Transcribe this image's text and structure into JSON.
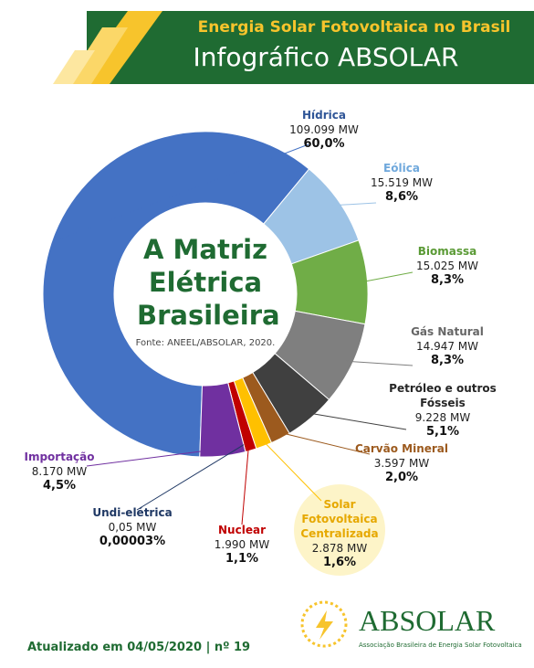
{
  "header": {
    "title": "Energia Solar Fotovoltaica no Brasil",
    "subtitle": "Infográfico ABSOLAR"
  },
  "chart_data": {
    "type": "donut",
    "title": "A Matriz Elétrica Brasileira",
    "source": "Fonte: ANEEL/ABSOLAR, 2020.",
    "categories": [
      "Hídrica",
      "Eólica",
      "Biomassa",
      "Gás Natural",
      "Petróleo e outros Fósseis",
      "Carvão Mineral",
      "Solar Fotovoltaica Centralizada",
      "Nuclear",
      "Undi-elétrica",
      "Importação"
    ],
    "values": [
      109099,
      15519,
      15025,
      14947,
      9228,
      3597,
      2878,
      1990,
      0.05,
      8170
    ],
    "value_labels": [
      "109.099 MW",
      "15.519 MW",
      "15.025 MW",
      "14.947 MW",
      "9.228 MW",
      "3.597 MW",
      "2.878  MW",
      "1.990 MW",
      "0,05 MW",
      "8.170 MW"
    ],
    "percent": [
      60.0,
      8.6,
      8.3,
      8.3,
      5.1,
      2.0,
      1.6,
      1.1,
      3e-05,
      4.5
    ],
    "percent_labels": [
      "60,0%",
      "8,6%",
      "8,3%",
      "8,3%",
      "5,1%",
      "2,0%",
      "1,6%",
      "1,1%",
      "0,00003%",
      "4,5%"
    ],
    "colors": [
      "#4472c4",
      "#9dc3e6",
      "#70ad47",
      "#7f7f7f",
      "#404040",
      "#9c5a1e",
      "#ffc000",
      "#c00000",
      "#1f3864",
      "#7030a0"
    ],
    "label_colors": [
      "#2f5597",
      "#6fa8dc",
      "#5a9a35",
      "#666666",
      "#262626",
      "#9c5a1e",
      "#e6a800",
      "#c00000",
      "#1f3864",
      "#7030a0"
    ]
  },
  "footer": {
    "update": "Atualizado em 04/05/2020 | nº 19",
    "logo_name": "ABSOLAR",
    "logo_tagline": "Associação Brasileira de Energia Solar Fotovoltaica"
  }
}
